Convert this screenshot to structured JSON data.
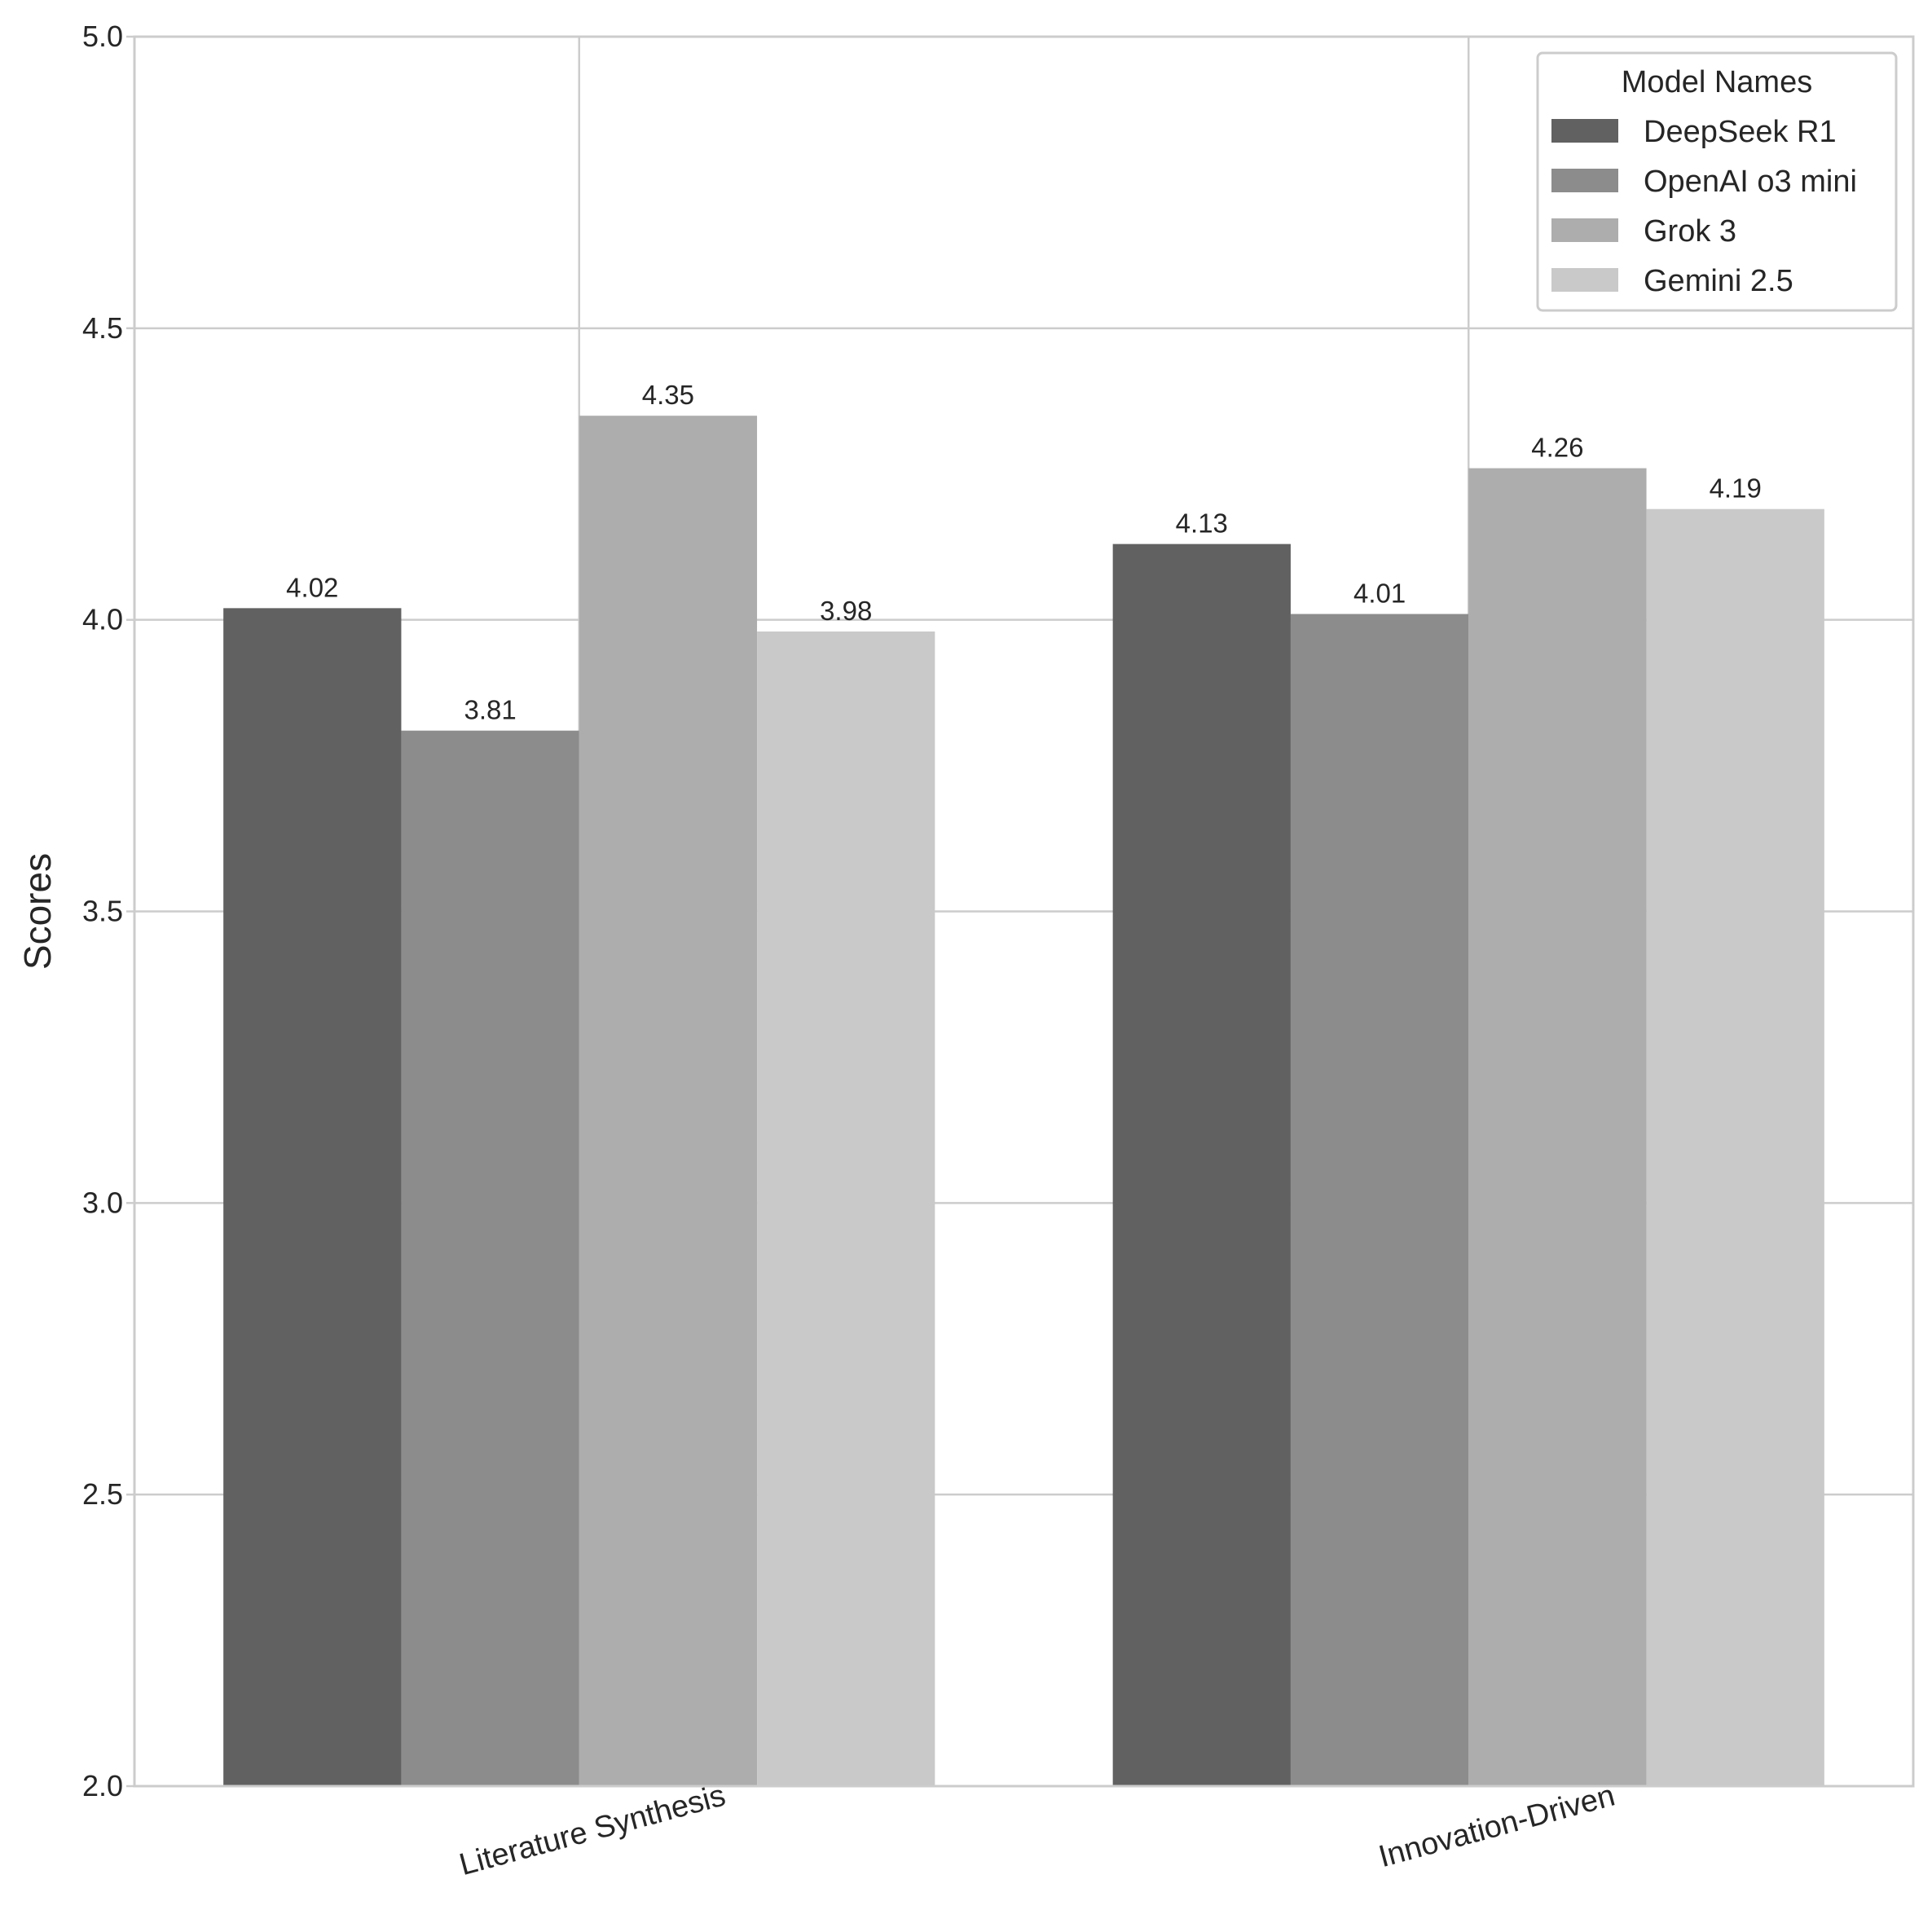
{
  "chart_data": {
    "type": "bar",
    "title": "",
    "xlabel": "",
    "ylabel": "Scores",
    "ylim": [
      2.0,
      5.0
    ],
    "yticks": [
      "2.0",
      "2.5",
      "3.0",
      "3.5",
      "4.0",
      "4.5",
      "5.0"
    ],
    "categories": [
      "Literature Synthesis",
      "Innovation-Driven"
    ],
    "series": [
      {
        "name": "DeepSeek R1",
        "color": "#616161",
        "values": [
          4.02,
          4.13
        ],
        "labels": [
          "4.02",
          "4.13"
        ]
      },
      {
        "name": "OpenAI o3 mini",
        "color": "#8c8c8c",
        "values": [
          3.81,
          4.01
        ],
        "labels": [
          "3.81",
          "4.01"
        ]
      },
      {
        "name": "Grok 3",
        "color": "#adadad",
        "values": [
          4.35,
          4.26
        ],
        "labels": [
          "4.35",
          "4.26"
        ]
      },
      {
        "name": "Gemini 2.5",
        "color": "#c9c9c9",
        "values": [
          3.98,
          4.19
        ],
        "labels": [
          "3.98",
          "4.19"
        ]
      }
    ],
    "legend": {
      "title": "Model Names",
      "position": "top-right"
    },
    "grid": true,
    "colors": {
      "grid": "#cccccc",
      "axes_frame": "#cccccc",
      "text": "#262626",
      "bar_label": "#262626"
    }
  }
}
